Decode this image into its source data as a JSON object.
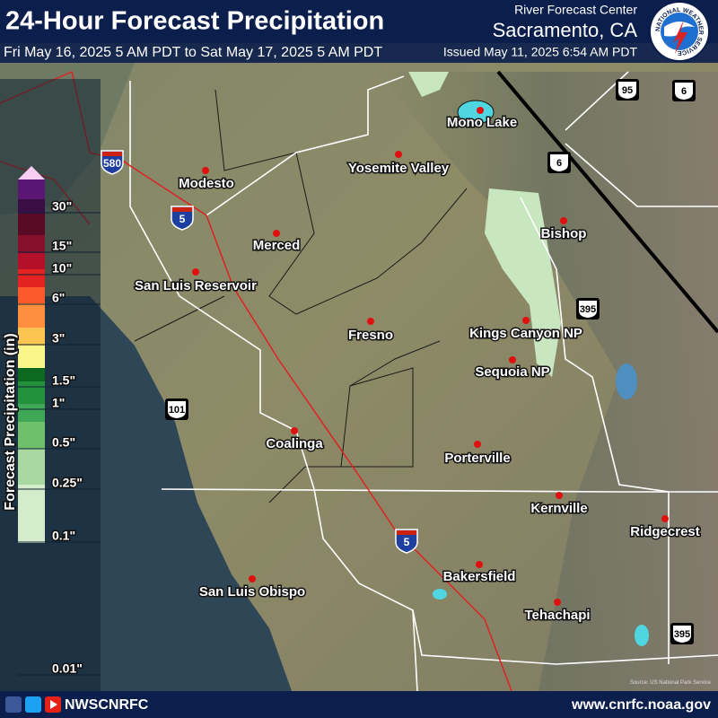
{
  "header": {
    "title": "24-Hour Forecast Precipitation",
    "valid_period": "Fri May 16, 2025 5 AM PDT to Sat May 17, 2025 5 AM PDT",
    "issued": "Issued May 11, 2025 6:54 AM PDT",
    "center": "River Forecast Center",
    "location": "Sacramento, CA",
    "logo_text": "NATIONAL WEATHER SERVICE"
  },
  "legend": {
    "title": "Forecast Precipitation (in)",
    "labels": [
      "30\"",
      "15\"",
      "10\"",
      "6\"",
      "3\"",
      "1.5\"",
      "1\"",
      "0.5\"",
      "0.25\"",
      "0.1\"",
      "0.01\""
    ],
    "colors": [
      "#f8cdf4",
      "#5a1673",
      "#3b0d45",
      "#5a0a24",
      "#860f2a",
      "#b5102a",
      "#e3231f",
      "#fb5a2c",
      "#fd8f3e",
      "#fdc454",
      "#fbf58a",
      "#0b6a1f",
      "#23903c",
      "#3fa856",
      "#6ec06b",
      "#a9d9a0",
      "#d4ecc9"
    ]
  },
  "map": {
    "cities": [
      "Modesto",
      "Merced",
      "San Luis Reservoir",
      "Yosemite Valley",
      "Mono Lake",
      "Bishop",
      "Kings Canyon NP",
      "Sequoia NP",
      "Fresno",
      "Coalinga",
      "Porterville",
      "Kernville",
      "Ridgecrest",
      "Bakersfield",
      "San Luis Obispo",
      "Tehachapi"
    ],
    "highways": [
      "580",
      "5",
      "5",
      "95",
      "6",
      "6",
      "395",
      "101",
      "395"
    ],
    "source": "Source: US National Park Service"
  },
  "footer": {
    "handle": "NWSCNRFC",
    "url": "www.cnrfc.noaa.gov"
  }
}
